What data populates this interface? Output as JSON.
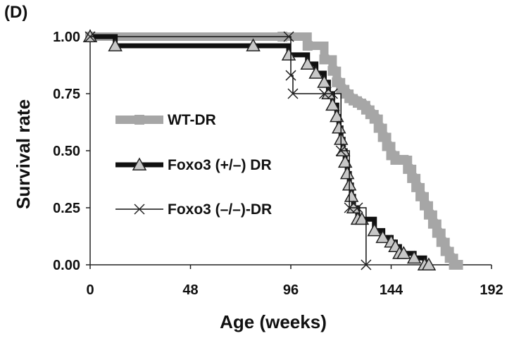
{
  "panel_label": "(D)",
  "chart_data": {
    "type": "line",
    "xlabel": "Age (weeks)",
    "ylabel": "Survival rate",
    "xlim": [
      0,
      192
    ],
    "ylim": [
      0,
      1
    ],
    "x_ticks": [
      "0",
      "48",
      "96",
      "144",
      "192"
    ],
    "y_ticks": [
      "0.00",
      "0.25",
      "0.50",
      "0.75",
      "1.00"
    ],
    "grid": false,
    "legend_placement": "center-left",
    "series": [
      {
        "name": "WT-DR",
        "color": "#a6a6a6",
        "marker": "square",
        "x": [
          0,
          92,
          104,
          112,
          116,
          118,
          120,
          122,
          124,
          126,
          128,
          130,
          132,
          134,
          136,
          138,
          140,
          142,
          144,
          146,
          150,
          152,
          154,
          156,
          158,
          160,
          162,
          164,
          166,
          168,
          170,
          172,
          174,
          176
        ],
        "y": [
          1.0,
          1.0,
          0.96,
          0.9,
          0.85,
          0.8,
          0.77,
          0.75,
          0.73,
          0.72,
          0.71,
          0.7,
          0.68,
          0.66,
          0.64,
          0.6,
          0.56,
          0.52,
          0.48,
          0.46,
          0.46,
          0.42,
          0.38,
          0.34,
          0.3,
          0.26,
          0.22,
          0.18,
          0.14,
          0.1,
          0.06,
          0.03,
          0.0,
          0.0
        ]
      },
      {
        "name": "Foxo3 (+/–) DR",
        "color": "#111111",
        "marker": "triangle",
        "x": [
          0,
          12,
          78,
          95,
          104,
          108,
          112,
          114,
          116,
          118,
          119,
          120,
          121,
          122,
          123,
          124,
          125,
          126,
          128,
          130,
          136,
          140,
          144,
          146,
          148,
          150,
          155,
          160,
          162
        ],
        "y": [
          1.0,
          0.96,
          0.96,
          0.92,
          0.88,
          0.84,
          0.8,
          0.75,
          0.7,
          0.65,
          0.6,
          0.55,
          0.5,
          0.45,
          0.4,
          0.35,
          0.3,
          0.25,
          0.2,
          0.2,
          0.15,
          0.12,
          0.1,
          0.08,
          0.05,
          0.05,
          0.03,
          0.0,
          0.0
        ]
      },
      {
        "name": "Foxo3 (–/–)-DR",
        "color": "#111111",
        "marker": "x",
        "x": [
          0,
          95,
          96,
          97,
          112,
          116,
          120,
          124,
          128,
          132
        ],
        "y": [
          1.0,
          1.0,
          0.83,
          0.75,
          0.75,
          0.75,
          0.5,
          0.25,
          0.25,
          0.0
        ]
      }
    ]
  }
}
